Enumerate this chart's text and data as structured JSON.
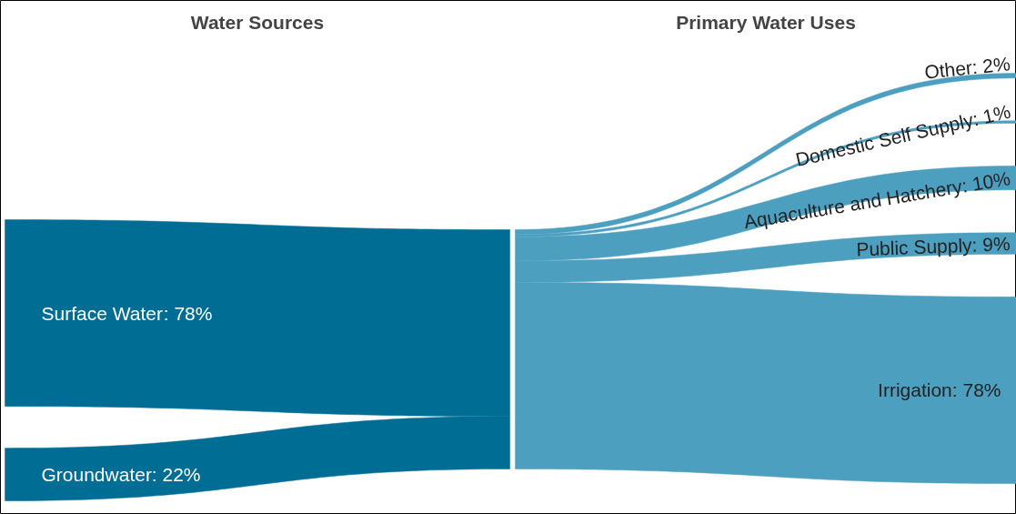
{
  "chart_data": {
    "type": "other",
    "annotations": [
      "Water Sources",
      "Primary Water Uses"
    ],
    "categories": [
      "Surface Water",
      "Groundwater",
      "Other",
      "Domestic Self Supply",
      "Aquaculture and Hatchery",
      "Public Supply",
      "Irrigation"
    ],
    "value_labels": [
      ": 78%",
      ": 22%",
      ": 2%",
      ": 1%",
      ": 10%",
      ": 9%",
      ": 78%"
    ],
    "values": [
      78,
      22,
      2,
      1,
      10,
      9,
      78
    ],
    "colors": [
      "#006d95",
      "#006d95",
      "#4d9fc0",
      "#4d9fc0",
      "#4d9fc0",
      "#4d9fc0",
      "#4d9fc0"
    ]
  }
}
